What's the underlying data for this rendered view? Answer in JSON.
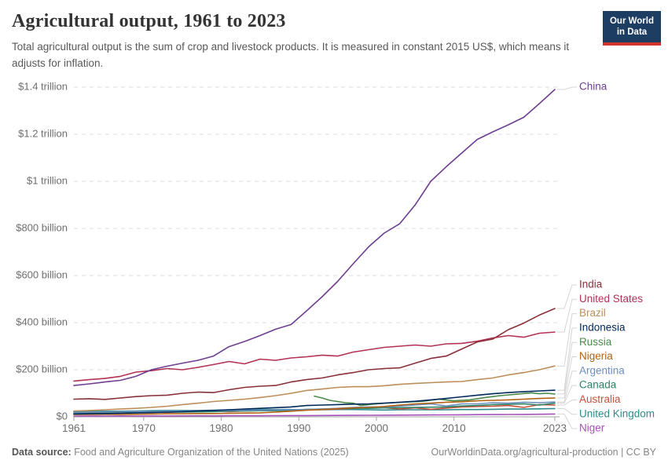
{
  "header": {
    "title": "Agricultural output, 1961 to 2023",
    "subtitle": "Total agricultural output is the sum of crop and livestock products. It is measured in constant 2015 US$, which means it adjusts for inflation.",
    "logo": {
      "line1": "Our World",
      "line2": "in Data"
    }
  },
  "footer": {
    "source_label": "Data source:",
    "source_text": " Food and Agriculture Organization of the United Nations (2025)",
    "credit": "OurWorldinData.org/agricultural-production | CC BY"
  },
  "colors": {
    "background": "#ffffff",
    "grid": "#dcdcdc",
    "axis": "#a3a3a3",
    "tick_label": "#6e6e6e",
    "connector": "#d5d5d5",
    "logo_bg": "#1d3d63",
    "logo_bar": "#d0342c"
  },
  "chart_data": {
    "type": "line",
    "title": "Agricultural output, 1961 to 2023",
    "xlabel": "",
    "ylabel": "constant 2015 US$ (billions)",
    "xlim": [
      1961,
      2023
    ],
    "ylim": [
      0,
      1400
    ],
    "grid": "dashed horizontal",
    "legend_position": "right edge, label per line end",
    "x_ticks": [
      1961,
      1970,
      1980,
      1990,
      2000,
      2010,
      2023
    ],
    "y_ticks": [
      {
        "value": 0,
        "label": "$0"
      },
      {
        "value": 200,
        "label": "$200 billion"
      },
      {
        "value": 400,
        "label": "$400 billion"
      },
      {
        "value": 600,
        "label": "$600 billion"
      },
      {
        "value": 800,
        "label": "$800 billion"
      },
      {
        "value": 1000,
        "label": "$1 trillion"
      },
      {
        "value": 1200,
        "label": "$1.2 trillion"
      },
      {
        "value": 1400,
        "label": "$1.4 trillion"
      }
    ],
    "series": [
      {
        "name": "China",
        "color": "#6d3e91",
        "years": [
          1961,
          1963,
          1965,
          1967,
          1969,
          1971,
          1973,
          1975,
          1977,
          1979,
          1981,
          1983,
          1985,
          1987,
          1989,
          1991,
          1993,
          1995,
          1997,
          1999,
          2001,
          2003,
          2005,
          2007,
          2009,
          2011,
          2013,
          2015,
          2017,
          2019,
          2021,
          2023
        ],
        "values": [
          133,
          140,
          148,
          155,
          172,
          200,
          215,
          228,
          240,
          258,
          298,
          320,
          345,
          372,
          392,
          450,
          510,
          575,
          650,
          722,
          780,
          820,
          900,
          1000,
          1062,
          1120,
          1178,
          1210,
          1240,
          1272,
          1330,
          1390
        ]
      },
      {
        "name": "India",
        "color": "#883039",
        "years": [
          1961,
          1963,
          1965,
          1967,
          1969,
          1971,
          1973,
          1975,
          1977,
          1979,
          1981,
          1983,
          1985,
          1987,
          1989,
          1991,
          1993,
          1995,
          1997,
          1999,
          2001,
          2003,
          2005,
          2007,
          2009,
          2011,
          2013,
          2015,
          2017,
          2019,
          2021,
          2023
        ],
        "values": [
          75,
          77,
          74,
          80,
          86,
          90,
          92,
          100,
          105,
          103,
          115,
          125,
          130,
          133,
          148,
          158,
          165,
          178,
          188,
          200,
          205,
          208,
          228,
          248,
          258,
          288,
          318,
          330,
          370,
          398,
          432,
          460
        ]
      },
      {
        "name": "United States",
        "color": "#b13254",
        "years": [
          1961,
          1963,
          1965,
          1967,
          1969,
          1971,
          1973,
          1975,
          1977,
          1979,
          1981,
          1983,
          1985,
          1987,
          1989,
          1991,
          1993,
          1995,
          1997,
          1999,
          2001,
          2003,
          2005,
          2007,
          2009,
          2011,
          2013,
          2015,
          2017,
          2019,
          2021,
          2023
        ],
        "values": [
          152,
          158,
          163,
          172,
          190,
          196,
          205,
          200,
          210,
          222,
          235,
          225,
          245,
          240,
          250,
          255,
          262,
          258,
          275,
          285,
          295,
          300,
          305,
          300,
          310,
          312,
          321,
          335,
          345,
          338,
          355,
          360
        ]
      },
      {
        "name": "Brazil",
        "color": "#bc8e5a",
        "years": [
          1961,
          1963,
          1965,
          1967,
          1969,
          1971,
          1973,
          1975,
          1977,
          1979,
          1981,
          1983,
          1985,
          1987,
          1989,
          1991,
          1993,
          1995,
          1997,
          1999,
          2001,
          2003,
          2005,
          2007,
          2009,
          2011,
          2013,
          2015,
          2017,
          2019,
          2021,
          2023
        ],
        "values": [
          25,
          27,
          30,
          33,
          36,
          40,
          45,
          52,
          58,
          65,
          70,
          75,
          82,
          90,
          100,
          112,
          118,
          125,
          128,
          128,
          132,
          138,
          142,
          145,
          148,
          150,
          158,
          165,
          178,
          188,
          200,
          216
        ]
      },
      {
        "name": "Indonesia",
        "color": "#00295b",
        "years": [
          1961,
          1963,
          1965,
          1967,
          1969,
          1971,
          1973,
          1975,
          1977,
          1979,
          1981,
          1983,
          1985,
          1987,
          1989,
          1991,
          1993,
          1995,
          1997,
          1999,
          2001,
          2003,
          2005,
          2007,
          2009,
          2011,
          2013,
          2015,
          2017,
          2019,
          2021,
          2023
        ],
        "values": [
          12,
          13,
          14,
          15,
          17,
          18,
          20,
          22,
          25,
          27,
          30,
          33,
          36,
          39,
          42,
          48,
          50,
          52,
          54,
          55,
          58,
          62,
          66,
          72,
          78,
          85,
          92,
          98,
          103,
          107,
          110,
          113
        ]
      },
      {
        "name": "Russia",
        "color": "#4c8a49",
        "years": [
          1992,
          1993,
          1994,
          1995,
          1996,
          1997,
          1998,
          1999,
          2000,
          2002,
          2004,
          2006,
          2008,
          2010,
          2012,
          2014,
          2016,
          2018,
          2020,
          2021,
          2022,
          2023
        ],
        "values": [
          88,
          80,
          70,
          65,
          60,
          58,
          48,
          52,
          55,
          60,
          63,
          66,
          75,
          68,
          72,
          82,
          90,
          96,
          102,
          98,
          100,
          97
        ]
      },
      {
        "name": "Nigeria",
        "color": "#b16214",
        "years": [
          1961,
          1963,
          1965,
          1967,
          1969,
          1971,
          1973,
          1975,
          1977,
          1979,
          1981,
          1983,
          1985,
          1987,
          1989,
          1991,
          1993,
          1995,
          1997,
          1999,
          2001,
          2003,
          2005,
          2007,
          2009,
          2011,
          2013,
          2015,
          2017,
          2019,
          2021,
          2023
        ],
        "values": [
          10,
          10,
          11,
          10,
          11,
          12,
          13,
          13,
          14,
          14,
          15,
          16,
          17,
          20,
          24,
          28,
          31,
          35,
          38,
          40,
          44,
          50,
          55,
          58,
          62,
          64,
          68,
          70,
          72,
          75,
          78,
          80
        ]
      },
      {
        "name": "Argentina",
        "color": "#6d8fbf",
        "years": [
          1961,
          1963,
          1965,
          1967,
          1969,
          1971,
          1973,
          1975,
          1977,
          1979,
          1981,
          1983,
          1985,
          1987,
          1989,
          1991,
          1993,
          1995,
          1997,
          1999,
          2001,
          2003,
          2005,
          2007,
          2009,
          2011,
          2013,
          2015,
          2017,
          2019,
          2021,
          2023
        ],
        "values": [
          18,
          20,
          21,
          22,
          23,
          22,
          24,
          25,
          27,
          26,
          27,
          28,
          28,
          29,
          30,
          31,
          33,
          36,
          40,
          42,
          42,
          46,
          50,
          55,
          46,
          55,
          55,
          60,
          58,
          62,
          60,
          63
        ]
      },
      {
        "name": "Canada",
        "color": "#2c8465",
        "years": [
          1961,
          1963,
          1965,
          1967,
          1969,
          1971,
          1973,
          1975,
          1977,
          1979,
          1981,
          1983,
          1985,
          1987,
          1989,
          1991,
          1993,
          1995,
          1997,
          1999,
          2001,
          2003,
          2005,
          2007,
          2009,
          2011,
          2013,
          2015,
          2017,
          2019,
          2021,
          2023
        ],
        "values": [
          14,
          15,
          16,
          17,
          18,
          19,
          20,
          20,
          21,
          22,
          24,
          25,
          26,
          26,
          27,
          32,
          33,
          35,
          37,
          36,
          38,
          39,
          40,
          41,
          42,
          46,
          48,
          52,
          53,
          55,
          50,
          58
        ]
      },
      {
        "name": "Australia",
        "color": "#c7503a",
        "years": [
          1961,
          1963,
          1965,
          1967,
          1969,
          1971,
          1973,
          1975,
          1977,
          1979,
          1981,
          1983,
          1985,
          1987,
          1989,
          1991,
          1993,
          1995,
          1997,
          1999,
          2001,
          2003,
          2005,
          2007,
          2009,
          2011,
          2013,
          2015,
          2017,
          2019,
          2021,
          2023
        ],
        "values": [
          14,
          16,
          15,
          18,
          19,
          20,
          19,
          22,
          21,
          24,
          22,
          25,
          26,
          27,
          29,
          30,
          31,
          33,
          36,
          38,
          39,
          33,
          38,
          32,
          37,
          42,
          44,
          45,
          48,
          40,
          52,
          50
        ]
      },
      {
        "name": "United Kingdom",
        "color": "#2c8c8c",
        "years": [
          1961,
          1963,
          1965,
          1967,
          1969,
          1971,
          1973,
          1975,
          1977,
          1979,
          1981,
          1983,
          1985,
          1987,
          1989,
          1991,
          1993,
          1995,
          1997,
          1999,
          2001,
          2003,
          2005,
          2007,
          2009,
          2011,
          2013,
          2015,
          2017,
          2019,
          2021,
          2023
        ],
        "values": [
          22,
          23,
          24,
          24,
          25,
          26,
          27,
          27,
          27,
          28,
          30,
          31,
          31,
          31,
          31,
          30,
          30,
          31,
          31,
          30,
          29,
          30,
          30,
          30,
          30,
          31,
          31,
          32,
          33,
          33,
          34,
          35
        ]
      },
      {
        "name": "Niger",
        "color": "#a652ba",
        "years": [
          1961,
          1963,
          1965,
          1967,
          1969,
          1971,
          1973,
          1975,
          1977,
          1979,
          1981,
          1983,
          1985,
          1987,
          1989,
          1991,
          1993,
          1995,
          1997,
          1999,
          2001,
          2003,
          2005,
          2007,
          2009,
          2011,
          2013,
          2015,
          2017,
          2019,
          2021,
          2023
        ],
        "values": [
          3.5,
          3.6,
          3.4,
          3.7,
          3.5,
          3.8,
          3.6,
          4,
          4.2,
          4,
          4.5,
          4.6,
          4.8,
          5,
          5.2,
          5.4,
          5.6,
          5.9,
          6.2,
          6.5,
          7,
          7.3,
          7.7,
          8,
          8.4,
          8.8,
          9.2,
          9.6,
          10,
          10.5,
          11,
          12
        ]
      }
    ]
  }
}
